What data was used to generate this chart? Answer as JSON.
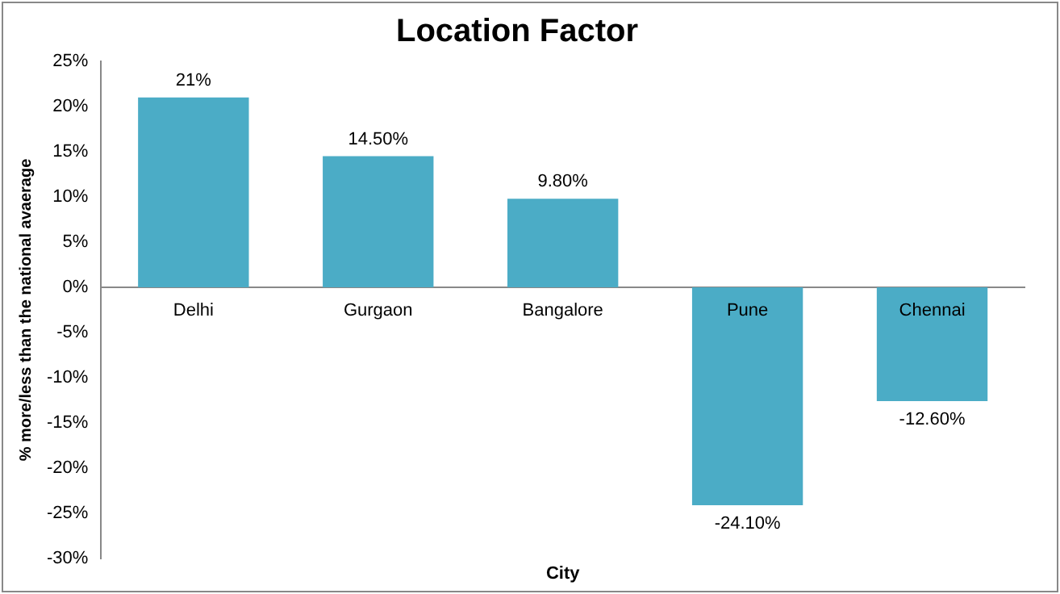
{
  "chart_data": {
    "type": "bar",
    "title": "Location Factor",
    "xlabel": "City",
    "ylabel": "% more/less than the national avaerage",
    "categories": [
      "Delhi",
      "Gurgaon",
      "Bangalore",
      "Pune",
      "Chennai"
    ],
    "values": [
      21,
      14.5,
      9.8,
      -24.1,
      -12.6
    ],
    "value_labels": [
      "21%",
      "14.50%",
      "9.80%",
      "-24.10%",
      "-12.60%"
    ],
    "color": "#4bacc6",
    "ylim": [
      -30,
      25
    ],
    "yticks": [
      {
        "value": -30,
        "label": "-30%"
      },
      {
        "value": -25,
        "label": "-25%"
      },
      {
        "value": -20,
        "label": "-20%"
      },
      {
        "value": -15,
        "label": "-15%"
      },
      {
        "value": -10,
        "label": "-10%"
      },
      {
        "value": -5,
        "label": "-5%"
      },
      {
        "value": 0,
        "label": "0%"
      },
      {
        "value": 5,
        "label": "5%"
      },
      {
        "value": 10,
        "label": "10%"
      },
      {
        "value": 15,
        "label": "15%"
      },
      {
        "value": 20,
        "label": "20%"
      },
      {
        "value": 25,
        "label": "25%"
      }
    ],
    "grid": false,
    "legend": false
  }
}
